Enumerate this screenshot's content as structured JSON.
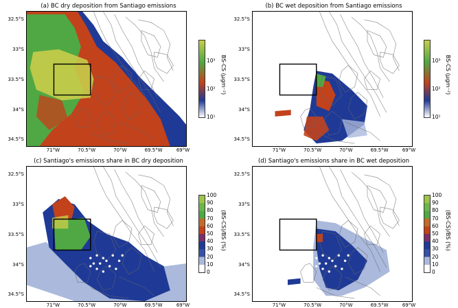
{
  "panels": [
    {
      "title": "(a) BC dry deposition from Santiago emissions",
      "colorbar_title": "BS-CS (µgm⁻²)",
      "colorbar_ticks": [
        "10³",
        "10²",
        "10¹"
      ],
      "pattern": "dry_abs"
    },
    {
      "title": "(b) BC wet deposition from Santiago emissions",
      "colorbar_title": "BS-CS (µgm⁻²)",
      "colorbar_ticks": [
        "10³",
        "10²",
        "10¹"
      ],
      "pattern": "wet_abs"
    },
    {
      "title": "(c) Santiago's emissions share in BC dry deposition",
      "colorbar_title": "(BS-CS)/BS (%)",
      "colorbar_ticks": [
        "100",
        "90",
        "80",
        "70",
        "60",
        "50",
        "40",
        "30",
        "20",
        "10",
        "0"
      ],
      "pattern": "dry_share"
    },
    {
      "title": "(d) Santiago's emissions share in BC wet deposition",
      "colorbar_title": "(BS-CS)/BS (%)",
      "colorbar_ticks": [
        "100",
        "90",
        "80",
        "70",
        "60",
        "50",
        "40",
        "30",
        "20",
        "10",
        "0"
      ],
      "pattern": "wet_share"
    }
  ],
  "y_ticks": [
    "32.5°S",
    "33°S",
    "33.5°S",
    "34°S",
    "34.5°S"
  ],
  "x_ticks": [
    "71°W",
    "70.5°W",
    "70°W",
    "69.5°W",
    "69°W"
  ],
  "colors": {
    "yellow": "#c8cc4a",
    "green": "#4fa844",
    "red": "#c2421c",
    "darkblue": "#1f3a96",
    "lightblue": "#aab9dc"
  }
}
